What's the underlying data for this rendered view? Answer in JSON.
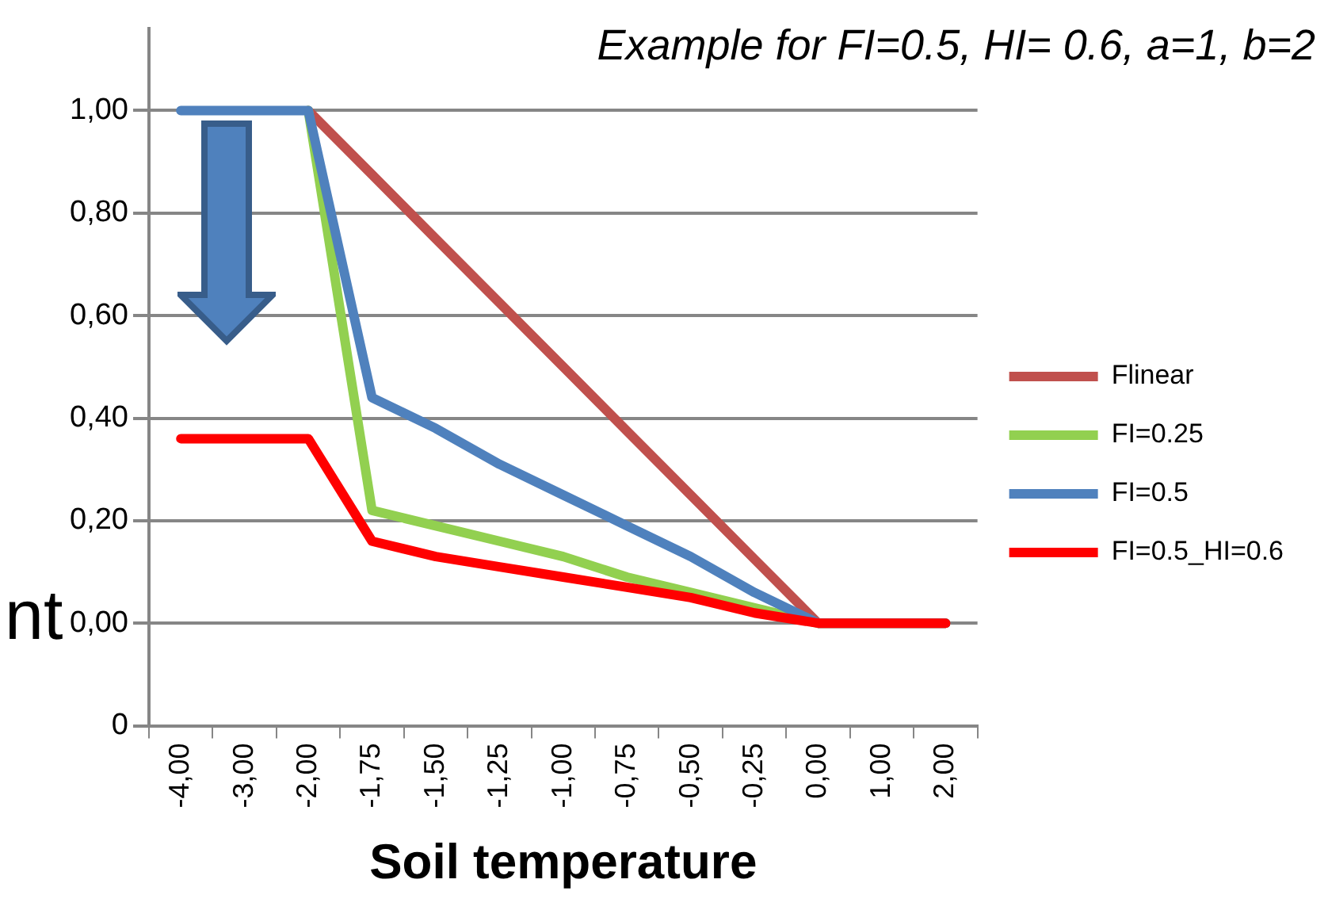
{
  "chart_data": {
    "type": "line",
    "title": "Example for FI=0.5, HI= 0.6, a=1, b=2",
    "xlabel": "Soil temperature",
    "ylabel": "nt",
    "categories": [
      "-4,00",
      "-3,00",
      "-2,00",
      "-1,75",
      "-1,50",
      "-1,25",
      "-1,00",
      "-0,75",
      "-0,50",
      "-0,25",
      "0,00",
      "1,00",
      "2,00"
    ],
    "series": [
      {
        "name": "Flinear",
        "color": "#c0504d",
        "values": [
          null,
          null,
          1,
          0.875,
          0.75,
          0.625,
          0.5,
          0.375,
          0.25,
          0.125,
          0,
          0,
          0
        ]
      },
      {
        "name": "FI=0.25",
        "color": "#92d050",
        "values": [
          null,
          null,
          1,
          0.22,
          0.19,
          0.16,
          0.13,
          0.09,
          0.06,
          0.03,
          0,
          0,
          0
        ]
      },
      {
        "name": "FI=0.5",
        "color": "#4f81bd",
        "values": [
          1,
          1,
          1,
          0.44,
          0.38,
          0.31,
          0.25,
          0.19,
          0.13,
          0.06,
          0,
          0,
          0
        ]
      },
      {
        "name": "FI=0.5_HI=0.6",
        "color": "#ff0000",
        "values": [
          0.36,
          0.36,
          0.36,
          0.16,
          0.13,
          0.11,
          0.09,
          0.07,
          0.05,
          0.02,
          0,
          0,
          0
        ]
      }
    ],
    "ylim": [
      -0.2,
      1.16
    ],
    "yticks": [
      {
        "value": -0.2,
        "label": "0"
      },
      {
        "value": 0,
        "label": "0,00"
      },
      {
        "value": 0.2,
        "label": "0,20"
      },
      {
        "value": 0.4,
        "label": "0,40"
      },
      {
        "value": 0.6,
        "label": "0,60"
      },
      {
        "value": 0.8,
        "label": "0,80"
      },
      {
        "value": 1,
        "label": "1,00"
      }
    ],
    "grid": "y",
    "legend": "right",
    "marker": "none",
    "line_style": "solid"
  }
}
